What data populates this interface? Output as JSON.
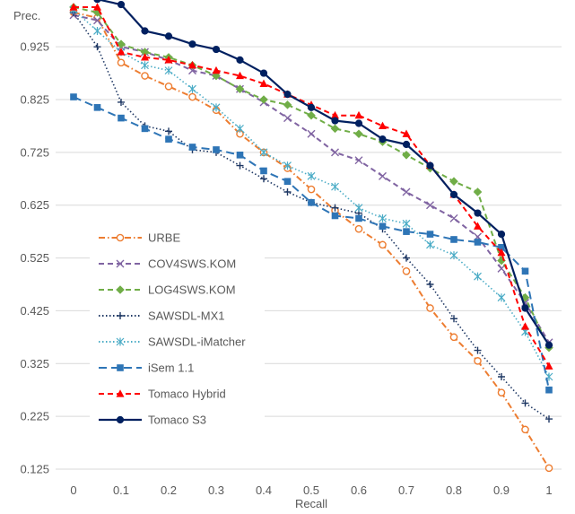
{
  "chart_data": {
    "type": "line",
    "ylabel": "Prec.",
    "xlabel": "Recall",
    "x": [
      0,
      0.05,
      0.1,
      0.15,
      0.2,
      0.25,
      0.3,
      0.35,
      0.4,
      0.45,
      0.5,
      0.55,
      0.6,
      0.65,
      0.7,
      0.75,
      0.8,
      0.85,
      0.9,
      0.95,
      1
    ],
    "xticks": [
      "0",
      "0.1",
      "0.2",
      "0.3",
      "0.4",
      "0.5",
      "0.6",
      "0.7",
      "0.8",
      "0.9",
      "1"
    ],
    "xtick_values": [
      0,
      0.1,
      0.2,
      0.3,
      0.4,
      0.5,
      0.6,
      0.7,
      0.8,
      0.9,
      1
    ],
    "yticks": [
      "0.125",
      "0.225",
      "0.325",
      "0.425",
      "0.525",
      "0.625",
      "0.725",
      "0.825",
      "0.925"
    ],
    "ytick_values": [
      0.125,
      0.225,
      0.325,
      0.425,
      0.525,
      0.625,
      0.725,
      0.825,
      0.925
    ],
    "xlim": [
      0,
      1
    ],
    "ylim": [
      0.125,
      1.0
    ],
    "grid": "horizontal",
    "legend_position": "left",
    "series": [
      {
        "name": "URBE",
        "color": "#ED7D31",
        "dash": "dashdot",
        "marker": "circle-open",
        "values": [
          0.99,
          0.98,
          0.895,
          0.87,
          0.85,
          0.83,
          0.805,
          0.76,
          0.725,
          0.695,
          0.655,
          0.615,
          0.58,
          0.55,
          0.5,
          0.43,
          0.375,
          0.33,
          0.27,
          0.2,
          0.127
        ]
      },
      {
        "name": "COV4SWS.KOM",
        "color": "#8064A2",
        "dash": "dash",
        "marker": "x",
        "values": [
          0.985,
          0.975,
          0.925,
          0.915,
          0.9,
          0.88,
          0.87,
          0.845,
          0.82,
          0.79,
          0.76,
          0.725,
          0.71,
          0.68,
          0.65,
          0.625,
          0.6,
          0.565,
          0.505,
          0.44,
          0.365
        ]
      },
      {
        "name": "LOG4SWS.KOM",
        "color": "#70AD47",
        "dash": "dash",
        "marker": "diamond",
        "values": [
          1.0,
          0.99,
          0.93,
          0.915,
          0.905,
          0.89,
          0.87,
          0.845,
          0.825,
          0.815,
          0.795,
          0.77,
          0.76,
          0.745,
          0.72,
          0.695,
          0.67,
          0.65,
          0.52,
          0.45,
          0.355
        ]
      },
      {
        "name": "SAWSDL-MX1",
        "color": "#1F3864",
        "dash": "dot",
        "marker": "plus",
        "values": [
          0.99,
          0.925,
          0.82,
          0.775,
          0.765,
          0.73,
          0.725,
          0.7,
          0.675,
          0.65,
          0.63,
          0.62,
          0.61,
          0.58,
          0.525,
          0.475,
          0.41,
          0.35,
          0.3,
          0.25,
          0.22
        ]
      },
      {
        "name": "SAWSDL-iMatcher",
        "color": "#4BACC6",
        "dash": "dot",
        "marker": "asterisk",
        "values": [
          0.995,
          0.955,
          0.915,
          0.89,
          0.88,
          0.845,
          0.81,
          0.77,
          0.725,
          0.7,
          0.68,
          0.66,
          0.62,
          0.6,
          0.59,
          0.55,
          0.53,
          0.49,
          0.45,
          0.385,
          0.3
        ]
      },
      {
        "name": "iSem 1.1",
        "color": "#2E75B6",
        "dash": "longdash",
        "marker": "square",
        "values": [
          0.83,
          0.81,
          0.79,
          0.77,
          0.75,
          0.735,
          0.73,
          0.72,
          0.69,
          0.67,
          0.63,
          0.605,
          0.6,
          0.585,
          0.575,
          0.57,
          0.56,
          0.555,
          0.545,
          0.5,
          0.275
        ]
      },
      {
        "name": "Tomaco Hybrid",
        "color": "#FF0000",
        "dash": "dash",
        "marker": "triangle",
        "values": [
          1.0,
          1.0,
          0.915,
          0.905,
          0.9,
          0.89,
          0.88,
          0.87,
          0.855,
          0.835,
          0.815,
          0.795,
          0.795,
          0.775,
          0.76,
          0.7,
          0.645,
          0.585,
          0.535,
          0.395,
          0.32
        ]
      },
      {
        "name": "Tomaco S3",
        "color": "#002060",
        "dash": "solid",
        "marker": "circle",
        "values": [
          1.025,
          1.015,
          1.005,
          0.955,
          0.945,
          0.93,
          0.92,
          0.9,
          0.875,
          0.835,
          0.81,
          0.785,
          0.78,
          0.75,
          0.74,
          0.7,
          0.645,
          0.61,
          0.57,
          0.43,
          0.36
        ]
      }
    ]
  }
}
